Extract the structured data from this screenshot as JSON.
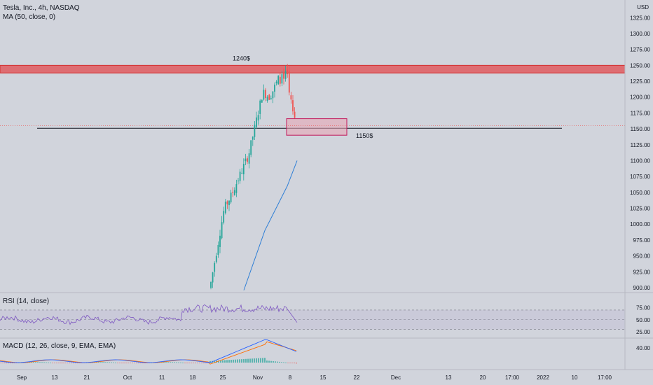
{
  "symbol": {
    "title": "Tesla, Inc., 4h, NASDAQ",
    "indicator": "MA (50, close, 0)",
    "currency": "USD"
  },
  "rsi_title": "RSI (14, close)",
  "macd_title": "MACD (12, 26, close, 9, EMA, EMA)",
  "colors": {
    "up": "#26a69a",
    "down": "#ef5350",
    "ma": "#2f7fd6",
    "rsi": "#7e57c2",
    "macd": "#2962ff",
    "signal": "#ff6d00",
    "zone_red": "#e05a5f",
    "zone_pink": "#e9a3b3"
  },
  "chart_data": [
    {
      "type": "line",
      "title": "",
      "y_axis": {
        "ticks": [
          1325,
          1300,
          1275,
          1250,
          1225,
          1200,
          1175,
          1150,
          1125,
          1100,
          1075,
          1050,
          1025,
          1000,
          975,
          950,
          925,
          900
        ],
        "ylim": [
          896,
          1332
        ]
      },
      "x_axis": {
        "ticks": [
          "Sep",
          "13",
          "21",
          "Oct",
          "11",
          "18",
          "25",
          "Nov",
          "8",
          "15",
          "22",
          "Dec",
          "13",
          "20",
          "17:00",
          "2022",
          "10",
          "17:00"
        ]
      },
      "annotations": [
        {
          "label": "1240$",
          "kind": "resistance-zone",
          "y_low": 1238,
          "y_high": 1250
        },
        {
          "label": "1150$",
          "kind": "support-line",
          "y": 1151
        },
        {
          "label": "",
          "kind": "demand-box",
          "y_low": 1140,
          "y_high": 1166
        }
      ],
      "candles_summary": [
        {
          "date": "Oct 21",
          "open": 900,
          "high": 912,
          "low": 895,
          "close": 908
        },
        {
          "date": "Oct 25",
          "open": 960,
          "high": 1045,
          "low": 940,
          "close": 1025
        },
        {
          "date": "Oct 27",
          "open": 1010,
          "high": 1060,
          "low": 1000,
          "close": 1045
        },
        {
          "date": "Oct 29",
          "open": 1080,
          "high": 1115,
          "low": 1075,
          "close": 1110
        },
        {
          "date": "Nov 1",
          "open": 1150,
          "high": 1225,
          "low": 1145,
          "close": 1208
        },
        {
          "date": "Nov 3",
          "open": 1180,
          "high": 1215,
          "low": 1155,
          "close": 1200
        },
        {
          "date": "Nov 4",
          "open": 1230,
          "high": 1243,
          "low": 1222,
          "close": 1235
        },
        {
          "date": "Nov 5",
          "open": 1230,
          "high": 1240,
          "low": 1215,
          "close": 1222
        },
        {
          "date": "Nov 8",
          "open": 1190,
          "high": 1198,
          "low": 1140,
          "close": 1162
        }
      ],
      "ma_series": {
        "name": "",
        "points": [
          [
            "Oct 28",
            896
          ],
          [
            "Nov 2",
            990
          ],
          [
            "Nov 5",
            1060
          ],
          [
            "Nov 9",
            1100
          ]
        ]
      }
    },
    {
      "type": "line",
      "y_axis": {
        "ticks": [
          75,
          50,
          25
        ],
        "ylim": [
          20,
          85
        ]
      },
      "levels": [
        70,
        50,
        30
      ]
    },
    {
      "type": "bar",
      "y_axis": {
        "ticks": [
          40
        ]
      }
    }
  ]
}
